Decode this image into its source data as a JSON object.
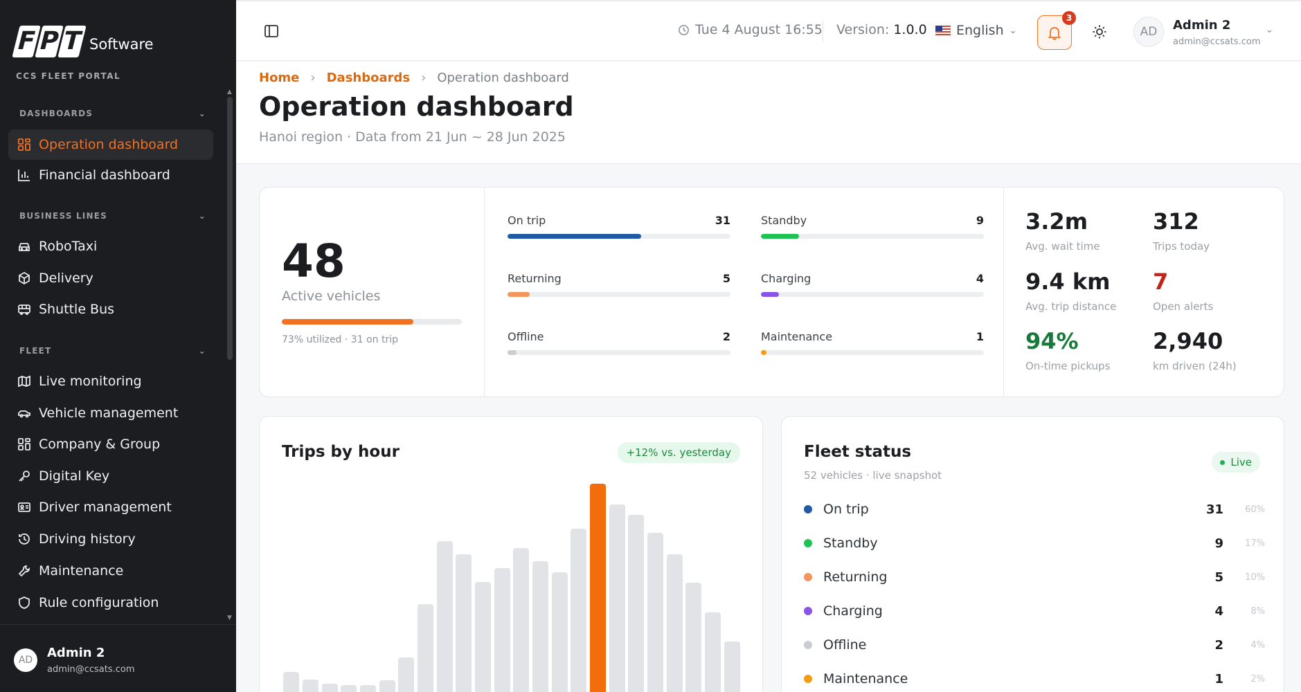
{
  "sidebar": {
    "logo_mark": "FPT",
    "logo_text": "Software",
    "portal": "CCS FLEET PORTAL",
    "sections": {
      "dashboards": "DASHBOARDS",
      "business": "BUSINESS LINES",
      "fleet": "FLEET"
    },
    "items": [
      {
        "label": "Operation dashboard",
        "icon": "grid-icon"
      },
      {
        "label": "Financial dashboard",
        "icon": "bar-chart-icon"
      },
      {
        "label": "RoboTaxi",
        "icon": "car-icon"
      },
      {
        "label": "Delivery",
        "icon": "box-icon"
      },
      {
        "label": "Shuttle Bus",
        "icon": "bus-icon"
      },
      {
        "label": "Live monitoring",
        "icon": "map-icon"
      },
      {
        "label": "Vehicle management",
        "icon": "car-side-icon"
      },
      {
        "label": "Company & Group",
        "icon": "grid-icon"
      },
      {
        "label": "Digital Key",
        "icon": "key-icon"
      },
      {
        "label": "Driver management",
        "icon": "id-card-icon"
      },
      {
        "label": "Driving history",
        "icon": "history-icon"
      },
      {
        "label": "Maintenance",
        "icon": "wrench-icon"
      },
      {
        "label": "Rule configuration",
        "icon": "shield-icon"
      }
    ],
    "user": {
      "initials": "AD",
      "name": "Admin 2",
      "email": "admin@ccsats.com"
    }
  },
  "header": {
    "datetime": "Tue 4 August 16:55",
    "version_label": "Version:",
    "version": "1.0.0",
    "language": "English",
    "notifications": "3",
    "user": {
      "initials": "AD",
      "name": "Admin 2",
      "email": "admin@ccsats.com"
    }
  },
  "page": {
    "breadcrumbs": [
      "Home",
      "Dashboards",
      "Operation dashboard"
    ],
    "title": "Operation dashboard",
    "subtitle": "Hanoi region · Data from 21 Jun ~ 28 Jun 2025"
  },
  "stats": {
    "active": "48",
    "active_label": "Active vehicles",
    "utilization": 0.73,
    "util_text": "73% utilized  ·  31 on trip",
    "statuses": [
      {
        "label": "On trip",
        "value": "31",
        "fraction": 0.6,
        "color": "#1f5aa6"
      },
      {
        "label": "Standby",
        "value": "9",
        "fraction": 0.17,
        "color": "#1ec452"
      },
      {
        "label": "Returning",
        "value": "5",
        "fraction": 0.1,
        "color": "#f2965e"
      },
      {
        "label": "Charging",
        "value": "4",
        "fraction": 0.08,
        "color": "#8a55e6"
      },
      {
        "label": "Offline",
        "value": "2",
        "fraction": 0.04,
        "color": "#c9ccd0"
      },
      {
        "label": "Maintenance",
        "value": "1",
        "fraction": 0.02,
        "color": "#f39c12"
      }
    ],
    "kpis": [
      {
        "value": "3.2m",
        "label": "Avg. wait time",
        "color": "#1b1d20"
      },
      {
        "value": "312",
        "label": "Trips today",
        "color": "#1b1d20"
      },
      {
        "value": "9.4 km",
        "label": "Avg. trip distance",
        "color": "#1b1d20"
      },
      {
        "value": "7",
        "label": "Open alerts",
        "color": "#c0241a"
      },
      {
        "value": "94%",
        "label": "On-time pickups",
        "color": "#17793a"
      },
      {
        "value": "2,940",
        "label": "km driven (24h)",
        "color": "#1b1d20"
      }
    ]
  },
  "trips": {
    "title": "Trips by hour",
    "badge": "+12% vs. yesterday"
  },
  "chart_data": {
    "type": "bar",
    "values": [
      30,
      19,
      13,
      10,
      10,
      18,
      52,
      132,
      226,
      207,
      165,
      186,
      216,
      196,
      180,
      245,
      313,
      282,
      266,
      239,
      207,
      164,
      120,
      76
    ],
    "highlight_index": 16
  },
  "fleet": {
    "title": "Fleet status",
    "subtitle": "52 vehicles · live snapshot",
    "live": "Live",
    "rows": [
      {
        "label": "On trip",
        "count": "31",
        "pct": "60%",
        "color": "#1f5aa6"
      },
      {
        "label": "Standby",
        "count": "9",
        "pct": "17%",
        "color": "#1ec452"
      },
      {
        "label": "Returning",
        "count": "5",
        "pct": "10%",
        "color": "#f2965e"
      },
      {
        "label": "Charging",
        "count": "4",
        "pct": "8%",
        "color": "#8a55e6"
      },
      {
        "label": "Offline",
        "count": "2",
        "pct": "4%",
        "color": "#c9ccd0"
      },
      {
        "label": "Maintenance",
        "count": "1",
        "pct": "2%",
        "color": "#f39c12"
      }
    ]
  }
}
